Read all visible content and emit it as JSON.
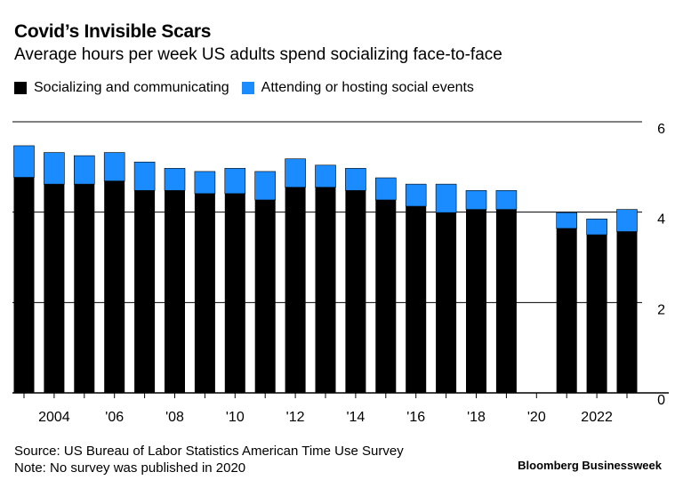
{
  "header": {
    "title": "Covid’s Invisible Scars",
    "subtitle": "Average hours per week US adults spend socializing face-to-face"
  },
  "footer": {
    "source": "Source: US Bureau of Labor Statistics American Time Use Survey",
    "note": "Note: No survey was published in 2020",
    "brand": "Bloomberg Businessweek"
  },
  "colors": {
    "socializing": "#000000",
    "events": "#1a8cff",
    "grid": "#000000"
  },
  "chart_data": {
    "type": "bar",
    "stacked": true,
    "title": "Covid’s Invisible Scars",
    "subtitle": "Average hours per week US adults spend socializing face-to-face",
    "x": [
      2003,
      2004,
      2005,
      2006,
      2007,
      2008,
      2009,
      2010,
      2011,
      2012,
      2013,
      2014,
      2015,
      2016,
      2017,
      2018,
      2019,
      2020,
      2021,
      2022,
      2023
    ],
    "series": [
      {
        "name": "Socializing and communicating",
        "color": "#000000",
        "values": [
          4.77,
          4.62,
          4.62,
          4.69,
          4.48,
          4.48,
          4.41,
          4.41,
          4.27,
          4.55,
          4.55,
          4.48,
          4.27,
          4.13,
          3.99,
          4.06,
          4.06,
          null,
          3.64,
          3.5,
          3.57
        ]
      },
      {
        "name": "Attending or hosting social events",
        "color": "#1a8cff",
        "values": [
          0.7,
          0.7,
          0.63,
          0.63,
          0.63,
          0.49,
          0.49,
          0.56,
          0.63,
          0.63,
          0.49,
          0.49,
          0.49,
          0.49,
          0.63,
          0.42,
          0.42,
          null,
          0.35,
          0.35,
          0.49
        ]
      }
    ],
    "ylim": [
      0,
      6
    ],
    "yticks": [
      0,
      2,
      4,
      6
    ],
    "xtick_labels": [
      {
        "x": 2004,
        "label": "2004"
      },
      {
        "x": 2006,
        "label": "'06"
      },
      {
        "x": 2008,
        "label": "'08"
      },
      {
        "x": 2010,
        "label": "'10"
      },
      {
        "x": 2012,
        "label": "'12"
      },
      {
        "x": 2014,
        "label": "'14"
      },
      {
        "x": 2016,
        "label": "'16"
      },
      {
        "x": 2018,
        "label": "'18"
      },
      {
        "x": 2020,
        "label": "'20"
      },
      {
        "x": 2022,
        "label": "2022"
      }
    ],
    "grid": true,
    "legend_position": "top-left"
  }
}
